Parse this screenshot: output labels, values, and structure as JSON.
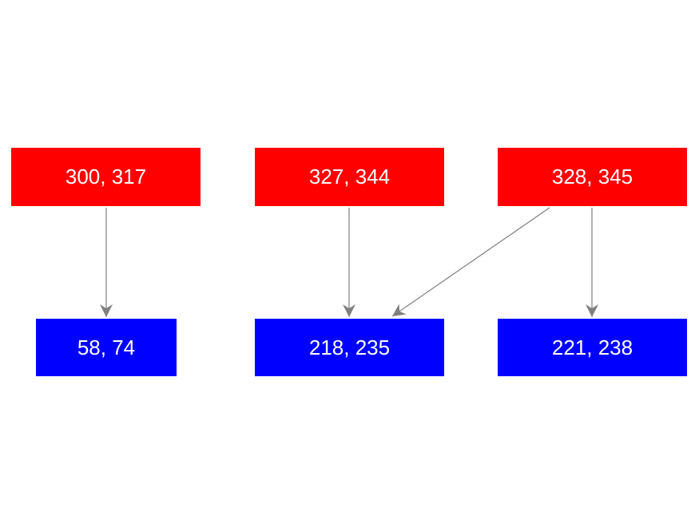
{
  "nodes": [
    {
      "label": "300, 317"
    },
    {
      "label": "327, 344"
    },
    {
      "label": "328, 345"
    },
    {
      "label": "58, 74"
    },
    {
      "label": "218, 235"
    },
    {
      "label": "221, 238"
    }
  ]
}
